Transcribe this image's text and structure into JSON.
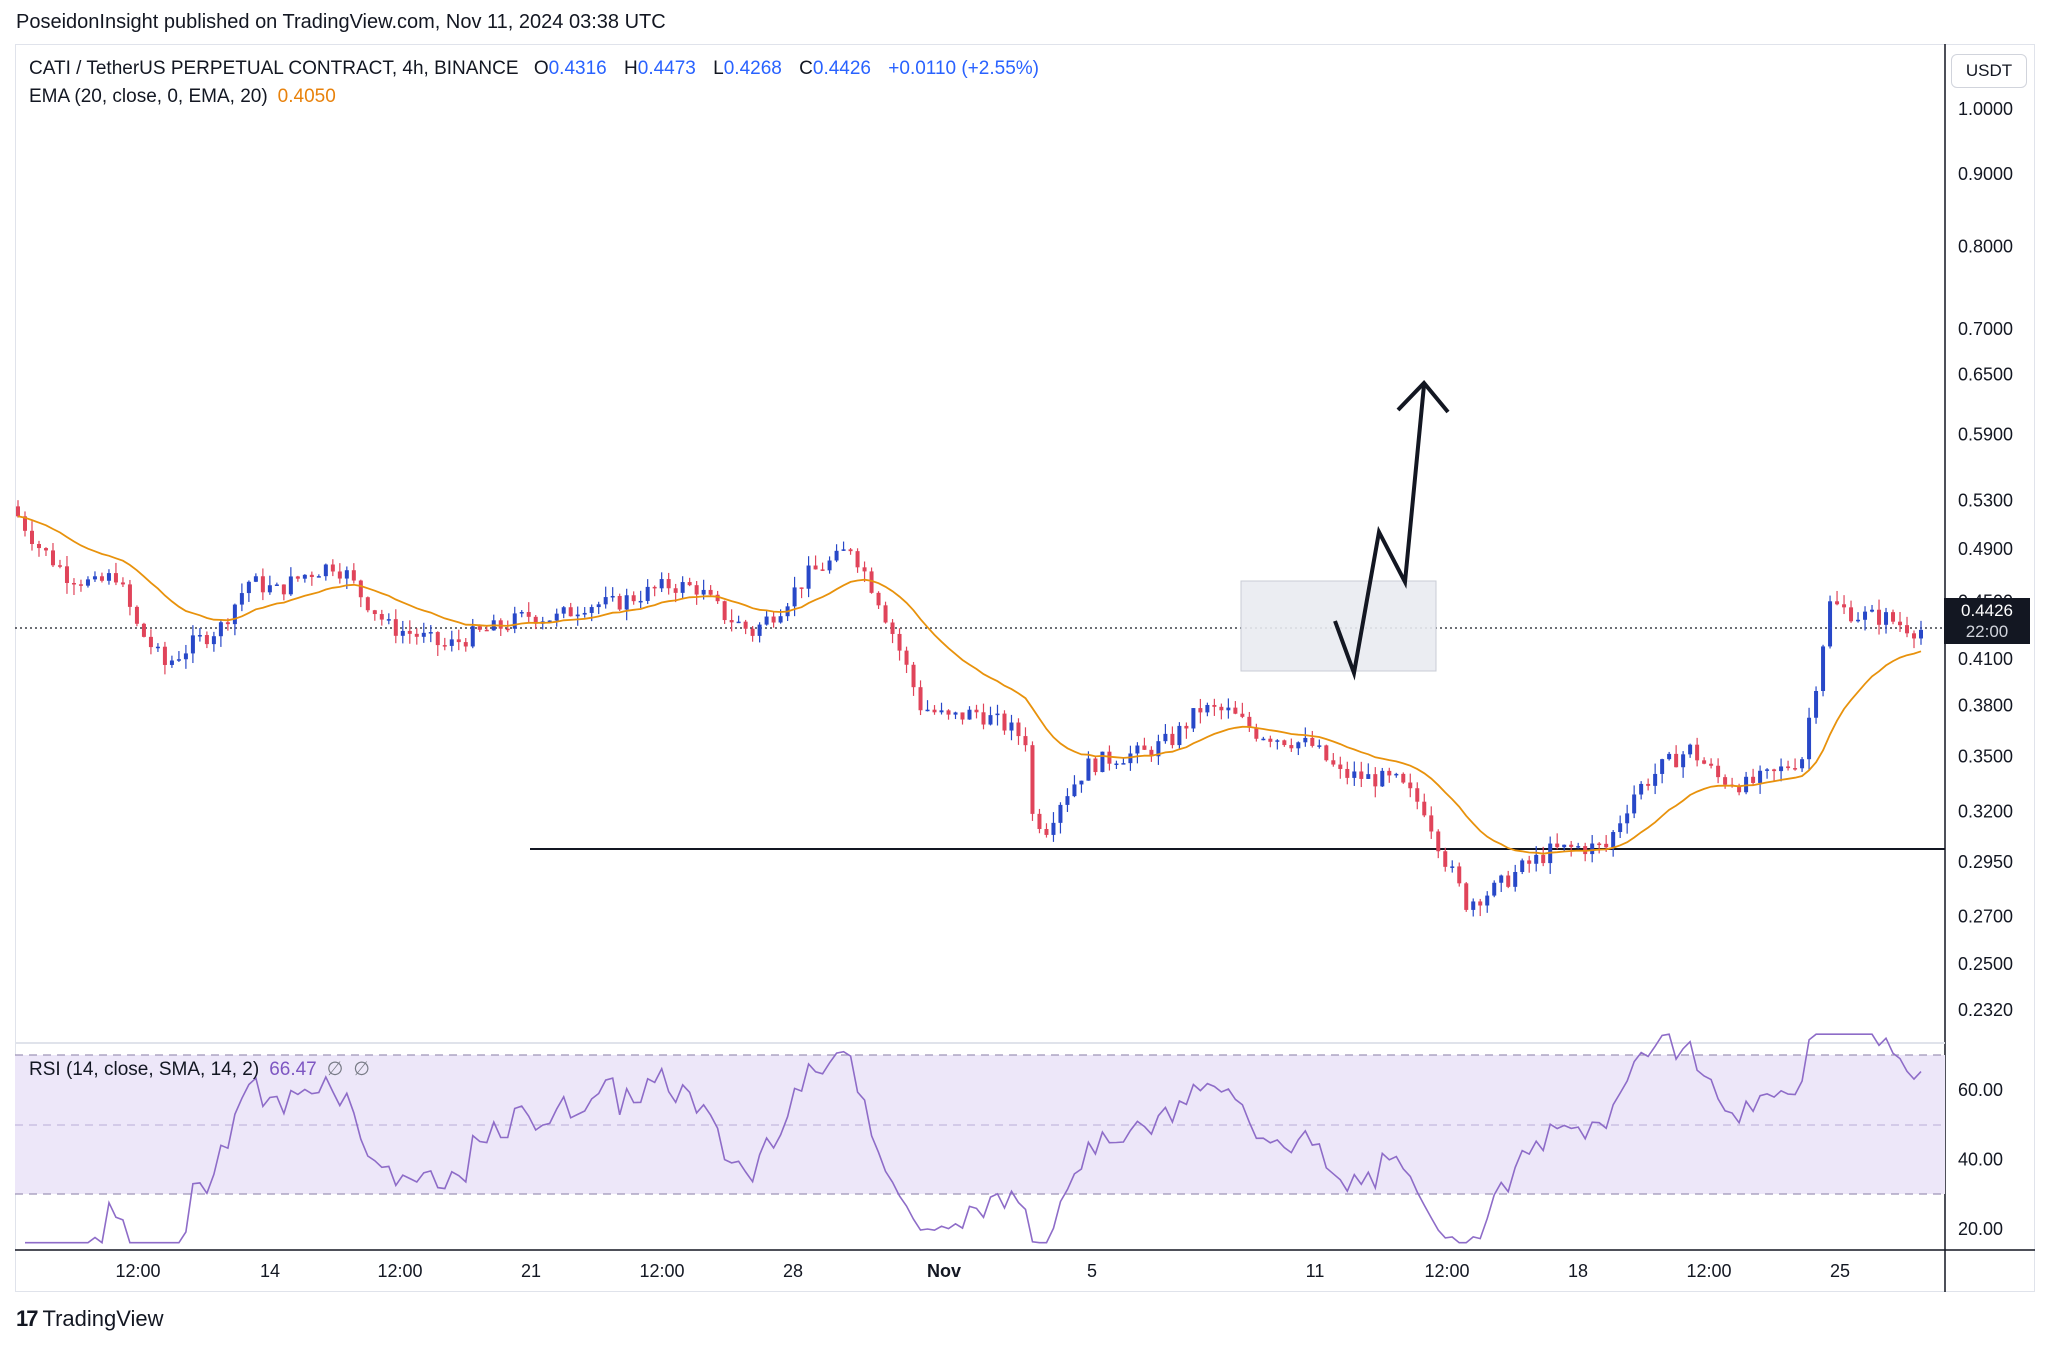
{
  "header": {
    "published": "PoseidonInsight published on TradingView.com, Nov 11, 2024 03:38 UTC"
  },
  "legend": {
    "symbol": "CATI / TetherUS PERPETUAL CONTRACT, 4h, BINANCE",
    "o_label": "O",
    "o_value": "0.4316",
    "h_label": "H",
    "h_value": "0.4473",
    "l_label": "L",
    "l_value": "0.4268",
    "c_label": "C",
    "c_value": "0.4426",
    "change": "+0.0110 (+2.55%)",
    "ema_label": "EMA (20, close, 0, EMA, 20)",
    "ema_value": "0.4050",
    "rsi_label": "RSI (14, close, SMA, 14, 2)",
    "rsi_value": "66.47",
    "rsi_null1": "∅",
    "rsi_null2": "∅"
  },
  "axis": {
    "currency": "USDT",
    "last_price": "0.4426",
    "countdown": "22:00"
  },
  "colors": {
    "up": "#2848c8",
    "down": "#e0445a",
    "ema": "#e8920c",
    "rsi": "#8e6cc8",
    "rsi_band": "#ede7f9"
  },
  "footer": {
    "brand": "TradingView",
    "brand_icon": "tradingview-logo-icon"
  },
  "chart_data": {
    "type": "candlestick",
    "timeframe": "4h",
    "price_scale": "log",
    "ylim": [
      0.22,
      1.08
    ],
    "y_ticks": [
      "1.0000",
      "0.9000",
      "0.8000",
      "0.7000",
      "0.6500",
      "0.5900",
      "0.5300",
      "0.4900",
      "0.4500",
      "0.4100",
      "0.3800",
      "0.3500",
      "0.3200",
      "0.2950",
      "0.2700",
      "0.2500",
      "0.2320"
    ],
    "x_ticks": [
      "12:00",
      "14",
      "12:00",
      "21",
      "12:00",
      "28",
      "Nov",
      "5",
      "11",
      "12:00",
      "18",
      "12:00",
      "25"
    ],
    "bars_total": 180,
    "ohlc_sample": [
      {
        "bar": 0,
        "o": 0.53,
        "h": 0.535,
        "l": 0.505,
        "c": 0.512
      },
      {
        "bar": 24,
        "o": 0.41,
        "h": 0.418,
        "l": 0.398,
        "c": 0.404
      },
      {
        "bar": 36,
        "o": 0.43,
        "h": 0.472,
        "l": 0.425,
        "c": 0.462
      },
      {
        "bar": 64,
        "o": 0.49,
        "h": 0.5,
        "l": 0.47,
        "c": 0.478
      },
      {
        "bar": 79,
        "o": 0.37,
        "h": 0.378,
        "l": 0.3,
        "c": 0.312
      },
      {
        "bar": 97,
        "o": 0.378,
        "h": 0.385,
        "l": 0.368,
        "c": 0.372
      },
      {
        "bar": 116,
        "o": 0.28,
        "h": 0.286,
        "l": 0.262,
        "c": 0.27
      },
      {
        "bar": 133,
        "o": 0.352,
        "h": 0.362,
        "l": 0.336,
        "c": 0.342
      },
      {
        "bar": 140,
        "o": 0.38,
        "h": 0.47,
        "l": 0.365,
        "c": 0.46
      },
      {
        "bar": 146,
        "o": 0.4316,
        "h": 0.4473,
        "l": 0.4268,
        "c": 0.4426
      }
    ],
    "horizontal_lines": [
      {
        "price": 0.3,
        "from_bar": 57
      }
    ],
    "current_price_line": 0.4426,
    "annotations": [
      {
        "type": "rectangle",
        "from_bar": 139,
        "to_bar": 159,
        "price_top": 0.452,
        "price_bottom": 0.4
      },
      {
        "type": "projection-path",
        "points": [
          [
            148,
            0.43
          ],
          [
            151,
            0.402
          ],
          [
            153,
            0.5
          ],
          [
            156,
            0.46
          ],
          [
            158,
            0.64
          ]
        ]
      }
    ],
    "rsi": {
      "ylim": [
        15,
        75
      ],
      "y_ticks": [
        "60.00",
        "40.00",
        "20.00"
      ],
      "upper_band": 70,
      "middle": 50,
      "lower_band": 30,
      "last_value": 66.47
    }
  }
}
